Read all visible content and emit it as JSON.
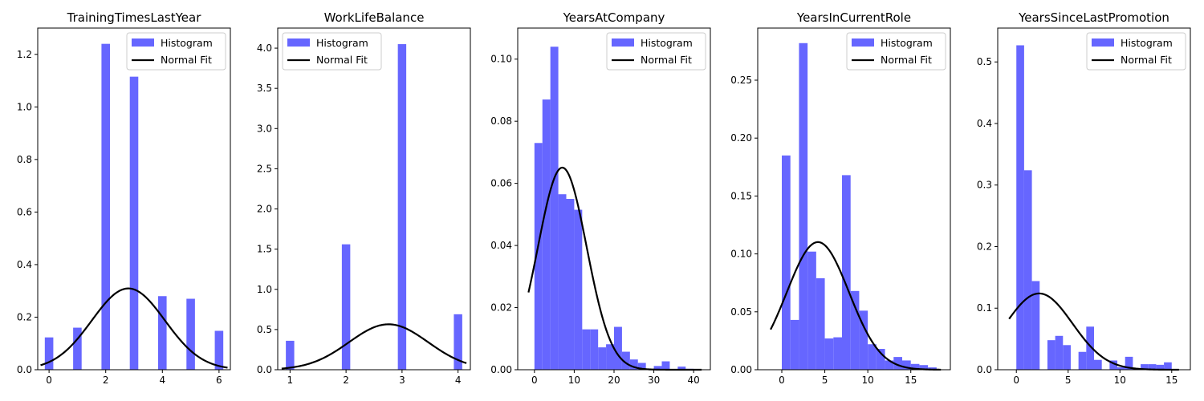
{
  "chart_data": [
    {
      "type": "bar",
      "title": "TrainingTimesLastYear",
      "xlim": [
        -0.4,
        6.4
      ],
      "ylim": [
        0,
        1.3
      ],
      "xticks": [
        0,
        2,
        4,
        6
      ],
      "yticks": [
        0.0,
        0.2,
        0.4,
        0.6,
        0.8,
        1.0,
        1.2
      ],
      "ytick_labels": [
        "0.0",
        "0.2",
        "0.4",
        "0.6",
        "0.8",
        "1.0",
        "1.2"
      ],
      "legend": [
        "Histogram",
        "Normal Fit"
      ],
      "legend_position": "top-right",
      "bin_width": 0.3,
      "bins": [
        {
          "x": 0.0,
          "h": 0.123
        },
        {
          "x": 1.0,
          "h": 0.16
        },
        {
          "x": 2.0,
          "h": 1.24
        },
        {
          "x": 3.0,
          "h": 1.115
        },
        {
          "x": 4.0,
          "h": 0.28
        },
        {
          "x": 5.0,
          "h": 0.27
        },
        {
          "x": 6.0,
          "h": 0.148
        }
      ],
      "normal_fit": {
        "mu": 2.8,
        "sigma": 1.29,
        "x_range": [
          -0.3,
          6.3
        ]
      }
    },
    {
      "type": "bar",
      "title": "WorkLifeBalance",
      "xlim": [
        0.78,
        4.22
      ],
      "ylim": [
        0,
        4.25
      ],
      "xticks": [
        1,
        2,
        3,
        4
      ],
      "yticks": [
        0.0,
        0.5,
        1.0,
        1.5,
        2.0,
        2.5,
        3.0,
        3.5,
        4.0
      ],
      "ytick_labels": [
        "0.0",
        "0.5",
        "1.0",
        "1.5",
        "2.0",
        "2.5",
        "3.0",
        "3.5",
        "4.0"
      ],
      "legend": [
        "Histogram",
        "Normal Fit"
      ],
      "legend_position": "top-left",
      "bin_width": 0.15,
      "bins": [
        {
          "x": 1.0,
          "h": 0.36
        },
        {
          "x": 2.0,
          "h": 1.56
        },
        {
          "x": 3.0,
          "h": 4.05
        },
        {
          "x": 4.0,
          "h": 0.69
        }
      ],
      "normal_fit": {
        "mu": 2.76,
        "sigma": 0.706,
        "x_range": [
          0.85,
          4.15
        ]
      }
    },
    {
      "type": "bar",
      "title": "YearsAtCompany",
      "xlim": [
        -4.2,
        44.2
      ],
      "ylim": [
        0,
        0.11
      ],
      "xticks": [
        0,
        10,
        20,
        30,
        40
      ],
      "yticks": [
        0.0,
        0.02,
        0.04,
        0.06,
        0.08,
        0.1
      ],
      "ytick_labels": [
        "0.00",
        "0.02",
        "0.04",
        "0.06",
        "0.08",
        "0.10"
      ],
      "legend": [
        "Histogram",
        "Normal Fit"
      ],
      "legend_position": "top-right",
      "bin_width": 2,
      "bins": [
        {
          "x": 1,
          "h": 0.073
        },
        {
          "x": 3,
          "h": 0.087
        },
        {
          "x": 5,
          "h": 0.104
        },
        {
          "x": 7,
          "h": 0.0565
        },
        {
          "x": 9,
          "h": 0.055
        },
        {
          "x": 11,
          "h": 0.0515
        },
        {
          "x": 13,
          "h": 0.013
        },
        {
          "x": 15,
          "h": 0.013
        },
        {
          "x": 17,
          "h": 0.0072
        },
        {
          "x": 19,
          "h": 0.0082
        },
        {
          "x": 21,
          "h": 0.0138
        },
        {
          "x": 23,
          "h": 0.0058
        },
        {
          "x": 25,
          "h": 0.0033
        },
        {
          "x": 27,
          "h": 0.0022
        },
        {
          "x": 29,
          "h": 0.0002
        },
        {
          "x": 31,
          "h": 0.0012
        },
        {
          "x": 33,
          "h": 0.0027
        },
        {
          "x": 35,
          "h": 0.0002
        },
        {
          "x": 37,
          "h": 0.001
        },
        {
          "x": 39,
          "h": 0.0003
        }
      ],
      "normal_fit": {
        "mu": 7.0,
        "sigma": 6.13,
        "x_range": [
          -1.5,
          42
        ]
      }
    },
    {
      "type": "bar",
      "title": "YearsInCurrentRole",
      "xlim": [
        -2.8,
        19.6
      ],
      "ylim": [
        0,
        0.295
      ],
      "xticks": [
        0,
        5,
        10,
        15
      ],
      "yticks": [
        0.0,
        0.05,
        0.1,
        0.15,
        0.2,
        0.25
      ],
      "ytick_labels": [
        "0.00",
        "0.05",
        "0.10",
        "0.15",
        "0.20",
        "0.25"
      ],
      "legend": [
        "Histogram",
        "Normal Fit"
      ],
      "legend_position": "top-right",
      "bin_width": 1,
      "bins": [
        {
          "x": 0.5,
          "h": 0.185
        },
        {
          "x": 1.5,
          "h": 0.043
        },
        {
          "x": 2.5,
          "h": 0.282
        },
        {
          "x": 3.5,
          "h": 0.102
        },
        {
          "x": 4.5,
          "h": 0.079
        },
        {
          "x": 5.5,
          "h": 0.027
        },
        {
          "x": 6.5,
          "h": 0.028
        },
        {
          "x": 7.5,
          "h": 0.168
        },
        {
          "x": 8.5,
          "h": 0.068
        },
        {
          "x": 9.5,
          "h": 0.051
        },
        {
          "x": 10.5,
          "h": 0.022
        },
        {
          "x": 11.5,
          "h": 0.018
        },
        {
          "x": 12.5,
          "h": 0.008
        },
        {
          "x": 13.5,
          "h": 0.011
        },
        {
          "x": 14.5,
          "h": 0.008
        },
        {
          "x": 15.5,
          "h": 0.005
        },
        {
          "x": 16.5,
          "h": 0.004
        },
        {
          "x": 17.5,
          "h": 0.002
        }
      ],
      "normal_fit": {
        "mu": 4.2,
        "sigma": 3.62,
        "x_range": [
          -1.3,
          18.5
        ]
      }
    },
    {
      "type": "bar",
      "title": "YearsSinceLastPromotion",
      "xlim": [
        -1.8,
        16.8
      ],
      "ylim": [
        0,
        0.555
      ],
      "xticks": [
        0,
        5,
        10,
        15
      ],
      "yticks": [
        0.0,
        0.1,
        0.2,
        0.3,
        0.4,
        0.5
      ],
      "ytick_labels": [
        "0.0",
        "0.1",
        "0.2",
        "0.3",
        "0.4",
        "0.5"
      ],
      "legend": [
        "Histogram",
        "Normal Fit"
      ],
      "legend_position": "top-right",
      "bin_width": 0.75,
      "bins": [
        {
          "x": 0.375,
          "h": 0.527
        },
        {
          "x": 1.125,
          "h": 0.324
        },
        {
          "x": 1.875,
          "h": 0.144
        },
        {
          "x": 3.375,
          "h": 0.048
        },
        {
          "x": 4.125,
          "h": 0.055
        },
        {
          "x": 4.875,
          "h": 0.04
        },
        {
          "x": 6.375,
          "h": 0.029
        },
        {
          "x": 7.125,
          "h": 0.07
        },
        {
          "x": 7.875,
          "h": 0.016
        },
        {
          "x": 9.375,
          "h": 0.015
        },
        {
          "x": 10.125,
          "h": 0.004
        },
        {
          "x": 10.875,
          "h": 0.021
        },
        {
          "x": 11.625,
          "h": 0.002
        },
        {
          "x": 12.375,
          "h": 0.009
        },
        {
          "x": 13.125,
          "h": 0.009
        },
        {
          "x": 13.875,
          "h": 0.008
        },
        {
          "x": 14.625,
          "h": 0.012
        }
      ],
      "normal_fit": {
        "mu": 2.2,
        "sigma": 3.22,
        "x_range": [
          -0.7,
          15.7
        ]
      }
    }
  ],
  "colors": {
    "histogram": "#6666ff",
    "normal_fit": "#000000",
    "axis": "#000000",
    "legend_border": "#cccccc"
  }
}
